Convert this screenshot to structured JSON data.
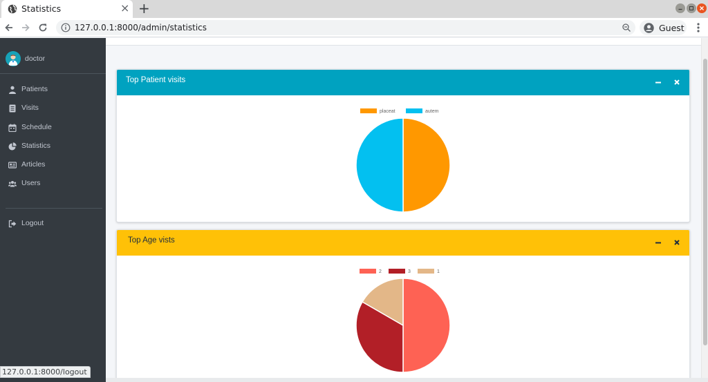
{
  "browser": {
    "tab_title": "Statistics",
    "new_tab_symbol": "+",
    "url": "127.0.0.1:8000/admin/statistics",
    "profile_name": "Guest",
    "status_url": "127.0.0.1:8000/logout"
  },
  "sidebar": {
    "user_name": "doctor",
    "items": [
      {
        "label": "Patients",
        "icon": "user-icon"
      },
      {
        "label": "Visits",
        "icon": "list-icon"
      },
      {
        "label": "Schedule",
        "icon": "calendar-icon"
      },
      {
        "label": "Statistics",
        "icon": "pie-chart-icon"
      },
      {
        "label": "Articles",
        "icon": "newspaper-icon"
      },
      {
        "label": "Users",
        "icon": "users-icon"
      }
    ],
    "logout": {
      "label": "Logout",
      "icon": "sign-out-icon"
    }
  },
  "colors": {
    "sidebar_bg": "#343a40",
    "card1_header": "#00a2c0",
    "card2_header": "#ffc107",
    "slice_orange": "#ff9800",
    "slice_sky": "#03c0f0",
    "slice_coral": "#fe6254",
    "slice_crimson": "#b21f27",
    "slice_tan": "#e3b788"
  },
  "cards": [
    {
      "title": "Top Patient visits",
      "collapse_symbol": "−",
      "close_symbol": "×",
      "chart_data": {
        "type": "pie",
        "series": [
          {
            "name": "placeat",
            "value": 1,
            "color": "#ff9800"
          },
          {
            "name": "autem",
            "value": 1,
            "color": "#03c0f0"
          }
        ],
        "legend": "top-center"
      }
    },
    {
      "title": "Top Age vists",
      "collapse_symbol": "−",
      "close_symbol": "×",
      "chart_data": {
        "type": "pie",
        "series": [
          {
            "name": "2",
            "value": 3,
            "color": "#fe6254"
          },
          {
            "name": "3",
            "value": 2,
            "color": "#b21f27"
          },
          {
            "name": "1",
            "value": 1,
            "color": "#e3b788"
          }
        ],
        "legend": "top-center"
      }
    }
  ]
}
